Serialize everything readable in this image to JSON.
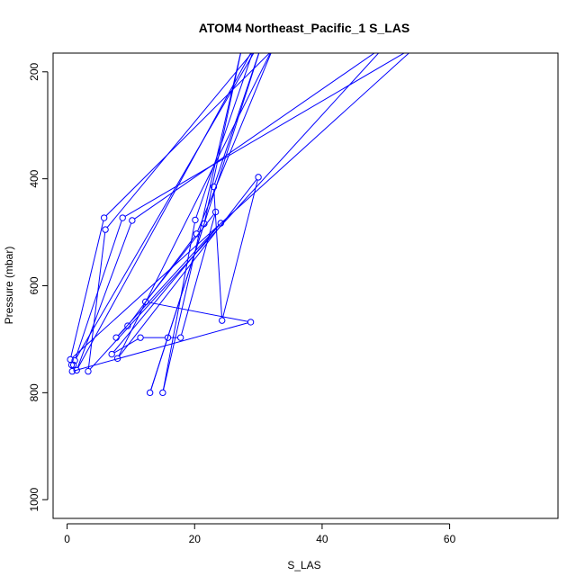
{
  "chart_data": {
    "type": "line",
    "title": "ATOM4 Northeast_Pacific_1 S_LAS",
    "xlabel": "S_LAS",
    "ylabel": "Pressure (mbar)",
    "xlim": [
      -2.2,
      77
    ],
    "ylim": [
      1035,
      165
    ],
    "y_inverted": true,
    "xticks": [
      0,
      20,
      40,
      60
    ],
    "yticks": [
      200,
      400,
      600,
      800,
      1000
    ],
    "grid": false,
    "series_color": "#0000ff",
    "points": [
      {
        "x": 33,
        "y": 150
      },
      {
        "x": 5.8,
        "y": 473
      },
      {
        "x": 0.5,
        "y": 738
      },
      {
        "x": 55,
        "y": 150
      },
      {
        "x": 8.7,
        "y": 473
      },
      {
        "x": 1.2,
        "y": 740
      },
      {
        "x": 30,
        "y": 150
      },
      {
        "x": 6.0,
        "y": 495
      },
      {
        "x": 3.3,
        "y": 760
      },
      {
        "x": 50,
        "y": 150
      },
      {
        "x": 10.2,
        "y": 478
      },
      {
        "x": 1.5,
        "y": 758
      },
      {
        "x": 29.5,
        "y": 150
      },
      {
        "x": 20.1,
        "y": 477
      },
      {
        "x": 15.0,
        "y": 800
      },
      {
        "x": 27.5,
        "y": 150
      },
      {
        "x": 21.5,
        "y": 484
      },
      {
        "x": 13.0,
        "y": 800
      },
      {
        "x": 30.5,
        "y": 150
      },
      {
        "x": 23.0,
        "y": 415
      },
      {
        "x": 24.3,
        "y": 665
      },
      {
        "x": 30.0,
        "y": 397
      },
      {
        "x": 7.9,
        "y": 736
      },
      {
        "x": 32.5,
        "y": 150
      },
      {
        "x": 20.3,
        "y": 503
      },
      {
        "x": 9.5,
        "y": 675
      },
      {
        "x": 7.7,
        "y": 697
      },
      {
        "x": 24.1,
        "y": 483
      },
      {
        "x": 7.0,
        "y": 728
      },
      {
        "x": 11.5,
        "y": 697
      },
      {
        "x": 15.8,
        "y": 697
      },
      {
        "x": 17.8,
        "y": 697
      },
      {
        "x": 23.3,
        "y": 462
      },
      {
        "x": 12.3,
        "y": 630
      },
      {
        "x": 28.8,
        "y": 668
      },
      {
        "x": 0.8,
        "y": 760
      },
      {
        "x": 0.7,
        "y": 748
      },
      {
        "x": 1.0,
        "y": 748
      }
    ]
  }
}
